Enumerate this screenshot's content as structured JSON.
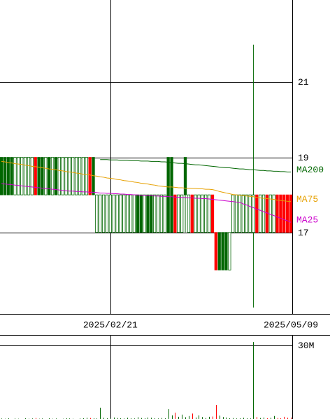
{
  "chart_data": {
    "type": "candlestick",
    "categories": [
      null,
      null,
      null,
      null,
      null,
      null,
      null,
      null,
      null,
      null,
      null,
      null,
      null,
      null,
      null,
      null,
      null,
      null,
      null,
      null,
      null,
      null,
      null,
      null,
      null,
      null,
      null,
      null,
      null,
      null,
      null,
      null,
      "2025/02/21",
      null,
      null,
      null,
      null,
      null,
      null,
      null,
      null,
      null,
      null,
      null,
      null,
      null,
      null,
      null,
      null,
      null,
      null,
      null,
      null,
      null,
      null,
      null,
      null,
      null,
      null,
      null,
      null,
      null,
      null,
      null,
      null,
      null,
      null,
      null,
      null,
      null,
      null,
      null,
      null,
      null,
      null,
      null,
      null,
      null,
      null,
      null,
      null,
      null,
      null,
      null,
      null,
      "2025/05/09"
    ],
    "open": [
      19,
      19,
      19,
      19,
      18,
      18,
      18,
      18,
      18,
      18,
      19,
      19,
      19,
      18,
      19,
      18,
      19,
      18,
      18,
      18,
      18,
      18,
      18,
      18,
      18,
      18,
      19,
      19,
      17,
      17,
      17,
      17,
      17,
      17,
      17,
      17,
      17,
      17,
      17,
      17,
      18,
      18,
      17,
      18,
      18,
      17,
      17,
      17,
      17,
      19,
      19,
      18,
      17,
      17,
      19,
      17,
      18,
      17,
      17,
      17,
      17,
      17,
      18,
      17,
      17,
      17,
      17,
      16,
      17,
      17,
      17,
      17,
      17,
      17,
      17,
      18,
      17,
      17,
      18,
      17,
      17,
      18,
      18,
      18,
      18,
      18
    ],
    "close": [
      18,
      18,
      18,
      18,
      19,
      19,
      19,
      19,
      19,
      19,
      18,
      18,
      18,
      19,
      18,
      19,
      18,
      19,
      19,
      19,
      19,
      19,
      19,
      19,
      19,
      19,
      18,
      18,
      18,
      18,
      18,
      18,
      18,
      18,
      18,
      18,
      18,
      18,
      18,
      18,
      17,
      17,
      18,
      17,
      17,
      18,
      18,
      18,
      18,
      17,
      17,
      17,
      18,
      18,
      18,
      18,
      17,
      18,
      18,
      18,
      18,
      18,
      17,
      16,
      16,
      16,
      16,
      17,
      18,
      18,
      18,
      18,
      18,
      18,
      18,
      17,
      18,
      18,
      17,
      18,
      18,
      17,
      17,
      17,
      17,
      17
    ],
    "high": [
      19,
      19,
      19,
      19,
      19,
      19,
      19,
      19,
      19,
      19,
      19,
      19,
      19,
      19,
      19,
      19,
      19,
      19,
      19,
      19,
      19,
      19,
      19,
      19,
      19,
      19,
      19,
      19,
      18,
      18,
      18,
      18,
      18,
      18,
      18,
      18,
      18,
      18,
      18,
      18,
      18,
      18,
      18,
      18,
      18,
      18,
      18,
      18,
      18,
      19,
      19,
      18,
      18,
      18,
      19,
      18,
      18,
      18,
      18,
      18,
      18,
      18,
      18,
      17,
      17,
      17,
      17,
      17,
      18,
      18,
      18,
      18,
      18,
      18,
      22,
      18,
      18,
      18,
      18,
      18,
      18,
      18,
      18,
      18,
      18,
      18
    ],
    "low": [
      18,
      18,
      18,
      18,
      18,
      18,
      18,
      18,
      18,
      18,
      18,
      18,
      18,
      18,
      18,
      18,
      18,
      18,
      18,
      18,
      18,
      18,
      18,
      18,
      18,
      18,
      18,
      18,
      17,
      17,
      17,
      17,
      17,
      17,
      17,
      17,
      17,
      17,
      17,
      17,
      17,
      17,
      17,
      17,
      17,
      17,
      17,
      17,
      17,
      17,
      17,
      17,
      17,
      17,
      17,
      17,
      17,
      17,
      17,
      17,
      17,
      17,
      17,
      16,
      16,
      16,
      16,
      16,
      17,
      17,
      17,
      17,
      17,
      17,
      15,
      17,
      17,
      17,
      17,
      17,
      17,
      17,
      17,
      17,
      17,
      17
    ],
    "colors": [
      "#006600",
      "#006600",
      "#006600",
      "#006600",
      "#ffffff",
      "#ffffff",
      "#ffffff",
      "#ffffff",
      "#ffffff",
      "#ffffff",
      "#ff0000",
      "#006600",
      "#006600",
      "#ffffff",
      "#006600",
      "#ffffff",
      "#006600",
      "#ffffff",
      "#ffffff",
      "#ffffff",
      "#ffffff",
      "#ffffff",
      "#ffffff",
      "#ffffff",
      "#ffffff",
      "#ffffff",
      "#ff0000",
      "#006600",
      "#ffffff",
      "#ffffff",
      "#ffffff",
      "#ffffff",
      "#ffffff",
      "#ffffff",
      "#ffffff",
      "#ffffff",
      "#ffffff",
      "#ffffff",
      "#ffffff",
      "#ffffff",
      "#006600",
      "#006600",
      "#ffffff",
      "#006600",
      "#006600",
      "#ffffff",
      "#ffffff",
      "#ffffff",
      "#ffffff",
      "#006600",
      "#006600",
      "#ff0000",
      "#ffffff",
      "#ffffff",
      "#006600",
      "#ffffff",
      "#ff0000",
      "#ffffff",
      "#ffffff",
      "#ffffff",
      "#ffffff",
      "#ffffff",
      "#ff0000",
      "#ff0000",
      "#006600",
      "#006600",
      "#006600",
      "#ffffff",
      "#ffffff",
      "#ffffff",
      "#ffffff",
      "#ffffff",
      "#ffffff",
      "#ffffff",
      "#ffffff",
      "#ff0000",
      "#ffffff",
      "#ffffff",
      "#ff0000",
      "#ffffff",
      "#ffffff",
      "#ff0000",
      "#ff0000",
      "#ff0000",
      "#ff0000",
      "#ff0000"
    ],
    "outline_color": "#006600",
    "ylim": [
      14.83,
      23.19
    ],
    "yticks": [
      17,
      19,
      21
    ],
    "grid": true,
    "series": [
      {
        "name": "MA200",
        "color": "#006600",
        "values": [
          null,
          null,
          null,
          null,
          null,
          null,
          null,
          null,
          null,
          null,
          null,
          null,
          null,
          null,
          null,
          null,
          null,
          null,
          null,
          null,
          null,
          null,
          null,
          null,
          null,
          null,
          null,
          null,
          null,
          18.94,
          18.94,
          18.94,
          18.93,
          18.93,
          18.93,
          18.92,
          18.92,
          18.92,
          18.91,
          18.91,
          18.91,
          18.9,
          18.9,
          18.9,
          18.89,
          18.89,
          18.89,
          18.88,
          18.88,
          18.87,
          18.86,
          18.85,
          18.84,
          18.84,
          18.83,
          18.82,
          18.81,
          18.8,
          18.8,
          18.79,
          18.78,
          18.77,
          18.76,
          18.75,
          18.74,
          18.73,
          18.72,
          18.72,
          18.71,
          18.7,
          18.69,
          18.69,
          18.68,
          18.67,
          18.67,
          18.66,
          18.65,
          18.65,
          18.64,
          18.64,
          18.63,
          18.63,
          18.62,
          18.62,
          18.61,
          18.61
        ]
      },
      {
        "name": "MA75",
        "color": "#e6a000",
        "values": [
          18.89,
          18.88,
          18.86,
          18.85,
          18.83,
          18.82,
          18.81,
          18.79,
          18.78,
          18.76,
          18.75,
          18.74,
          18.72,
          18.71,
          18.69,
          18.68,
          18.67,
          18.65,
          18.64,
          18.62,
          18.61,
          18.6,
          18.58,
          18.57,
          18.55,
          18.54,
          18.53,
          18.51,
          18.5,
          18.48,
          18.47,
          18.45,
          18.44,
          18.43,
          18.41,
          18.4,
          18.38,
          18.37,
          18.36,
          18.34,
          18.33,
          18.31,
          18.3,
          18.29,
          18.27,
          18.26,
          18.24,
          18.23,
          18.22,
          18.21,
          18.21,
          18.2,
          18.19,
          18.19,
          18.18,
          18.18,
          18.17,
          18.17,
          18.16,
          18.16,
          18.15,
          18.15,
          18.14,
          18.12,
          18.09,
          18.07,
          18.05,
          18.03,
          18.01,
          18.0,
          17.99,
          17.98,
          17.97,
          17.96,
          17.95,
          17.93,
          17.92,
          17.91,
          17.9,
          17.89,
          17.88,
          17.86,
          17.85,
          17.84,
          17.83,
          17.82
        ]
      },
      {
        "name": "MA25",
        "color": "#cc00cc",
        "values": [
          18.3,
          18.29,
          18.28,
          18.27,
          18.26,
          18.25,
          18.24,
          18.23,
          18.22,
          18.21,
          18.2,
          18.19,
          18.18,
          18.17,
          18.16,
          18.15,
          18.14,
          18.13,
          18.12,
          18.11,
          18.1,
          18.1,
          18.09,
          18.09,
          18.08,
          18.08,
          18.07,
          18.07,
          18.06,
          18.05,
          18.05,
          18.04,
          18.04,
          18.03,
          18.03,
          18.02,
          18.02,
          18.01,
          18.01,
          18.0,
          18.0,
          17.99,
          17.99,
          17.98,
          17.98,
          17.97,
          17.97,
          17.96,
          17.96,
          17.95,
          17.95,
          17.94,
          17.94,
          17.93,
          17.93,
          17.92,
          17.92,
          17.91,
          17.91,
          17.9,
          17.9,
          17.89,
          17.88,
          17.87,
          17.86,
          17.85,
          17.84,
          17.83,
          17.82,
          17.81,
          17.8,
          17.76,
          17.73,
          17.69,
          17.66,
          17.62,
          17.59,
          17.55,
          17.52,
          17.48,
          17.45,
          17.41,
          17.38,
          17.34,
          17.31,
          17.27
        ]
      }
    ],
    "volume": {
      "type": "bar",
      "values": [
        200000,
        100000,
        300000,
        0,
        200000,
        100000,
        0,
        300000,
        100000,
        200000,
        400000,
        100000,
        200000,
        0,
        300000,
        100000,
        200000,
        0,
        100000,
        300000,
        200000,
        100000,
        0,
        200000,
        300000,
        500000,
        400000,
        300000,
        200000,
        4600000,
        500000,
        300000,
        200000,
        600000,
        400000,
        300000,
        200000,
        500000,
        300000,
        200000,
        700000,
        400000,
        300000,
        600000,
        500000,
        300000,
        200000,
        400000,
        300000,
        4000000,
        1500000,
        2600000,
        900000,
        1800000,
        700000,
        1200000,
        2200000,
        600000,
        1500000,
        800000,
        400000,
        900000,
        1000000,
        5700000,
        1400000,
        800000,
        600000,
        300000,
        400000,
        200000,
        300000,
        500000,
        300000,
        200000,
        31400000,
        800000,
        400000,
        600000,
        300000,
        500000,
        1200000,
        400000,
        300000,
        900000,
        500000,
        600000
      ],
      "ylim": [
        0,
        34300000
      ],
      "yticks": [
        {
          "value": 30000000,
          "label": "30M"
        }
      ]
    }
  }
}
